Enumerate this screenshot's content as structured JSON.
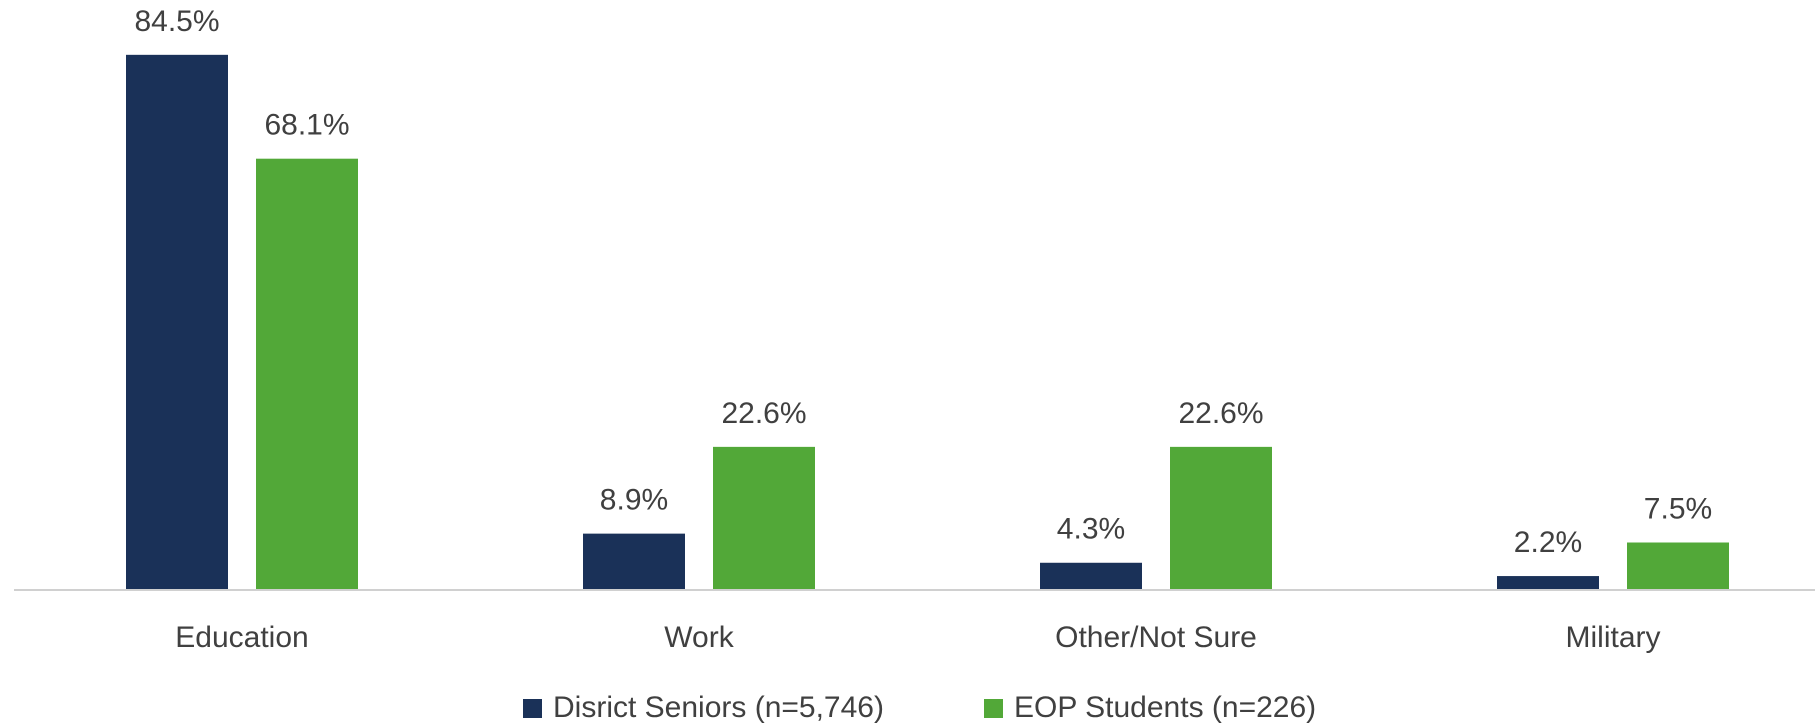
{
  "chart_data": {
    "type": "bar",
    "categories": [
      "Education",
      "Work",
      "Other/Not Sure",
      "Military"
    ],
    "series": [
      {
        "name": "Disrict Seniors (n=5,746)",
        "color": "#1a3158",
        "values": [
          84.5,
          8.9,
          4.3,
          2.2
        ],
        "value_labels": [
          "84.5%",
          "8.9%",
          "4.3%",
          "2.2%"
        ]
      },
      {
        "name": "EOP Students (n=226)",
        "color": "#52a838",
        "values": [
          68.1,
          22.6,
          22.6,
          7.5
        ],
        "value_labels": [
          "68.1%",
          "22.6%",
          "22.6%",
          "7.5%"
        ]
      }
    ],
    "ylim": [
      0,
      90
    ],
    "grid": false,
    "legend": "bottom"
  }
}
